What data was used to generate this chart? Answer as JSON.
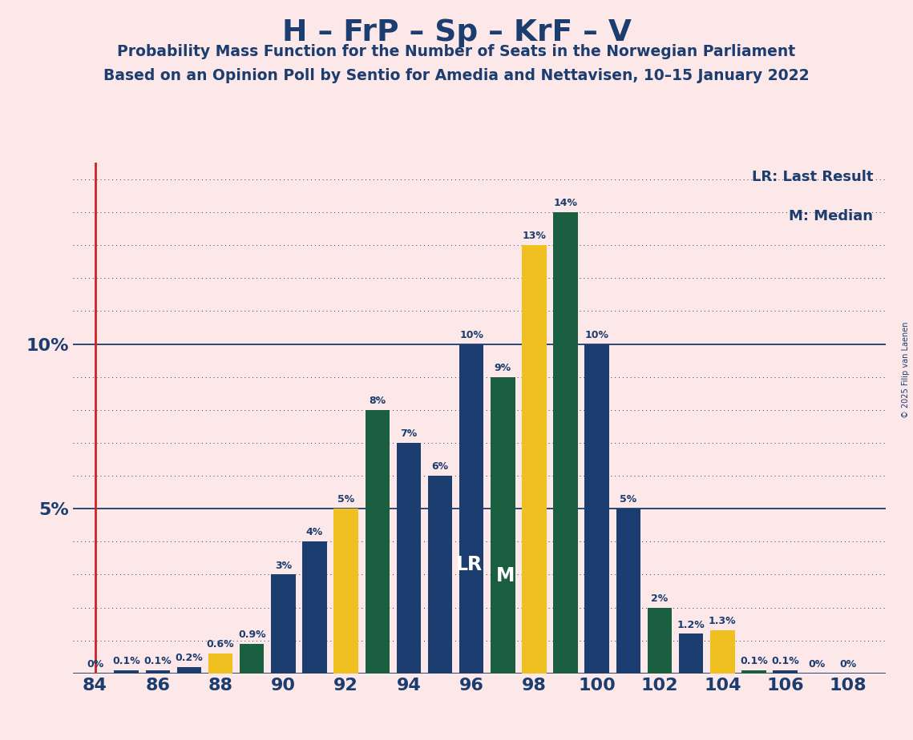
{
  "title": "H – FrP – Sp – KrF – V",
  "subtitle1": "Probability Mass Function for the Number of Seats in the Norwegian Parliament",
  "subtitle2": "Based on an Opinion Poll by Sentio for Amedia and Nettavisen, 10–15 January 2022",
  "copyright": "© 2025 Filip van Laenen",
  "lr_legend": "LR: Last Result",
  "m_legend": "M: Median",
  "background_color": "#fce8e8",
  "bar_color_blue": "#1b3d6f",
  "bar_color_yellow": "#f0c020",
  "bar_color_green": "#1a6040",
  "title_color": "#1b3d6f",
  "vline_color": "#cc2222",
  "vline_seat": 84,
  "ylim_max": 15.5,
  "seats": [
    84,
    85,
    86,
    87,
    88,
    89,
    90,
    91,
    92,
    93,
    94,
    95,
    96,
    97,
    98,
    99,
    100,
    101,
    102,
    103,
    104,
    105,
    106,
    107,
    108
  ],
  "values": [
    0.0,
    0.1,
    0.1,
    0.2,
    0.6,
    0.9,
    3.0,
    4.0,
    5.0,
    8.0,
    7.0,
    6.0,
    10.0,
    9.0,
    13.0,
    14.0,
    10.0,
    5.0,
    2.0,
    1.2,
    1.3,
    0.1,
    0.1,
    0.0,
    0.0
  ],
  "bar_colors": [
    "#1b3d6f",
    "#1b3d6f",
    "#1b3d6f",
    "#1b3d6f",
    "#f0c020",
    "#1a6040",
    "#1b3d6f",
    "#1b3d6f",
    "#f0c020",
    "#1a6040",
    "#1b3d6f",
    "#1b3d6f",
    "#1b3d6f",
    "#1a6040",
    "#f0c020",
    "#1a6040",
    "#1b3d6f",
    "#1b3d6f",
    "#1a6040",
    "#1b3d6f",
    "#f0c020",
    "#1a6040",
    "#1b3d6f",
    "#1b3d6f",
    "#1b3d6f"
  ],
  "label_values": [
    "0%",
    "0.1%",
    "0.1%",
    "0.2%",
    "0.6%",
    "0.9%",
    "3%",
    "4%",
    "5%",
    "8%",
    "7%",
    "6%",
    "10%",
    "9%",
    "13%",
    "14%",
    "10%",
    "5%",
    "2%",
    "1.2%",
    "1.3%",
    "0.1%",
    "0.1%",
    "0%",
    "0%"
  ],
  "lr_seat": 96,
  "m_seat": 97,
  "xticks": [
    84,
    86,
    88,
    90,
    92,
    94,
    96,
    98,
    100,
    102,
    104,
    106,
    108
  ],
  "solid_yticks": [
    0,
    5,
    10
  ],
  "dotted_yticks": [
    1,
    2,
    3,
    4,
    6,
    7,
    8,
    9,
    11,
    12,
    13,
    14,
    15
  ]
}
